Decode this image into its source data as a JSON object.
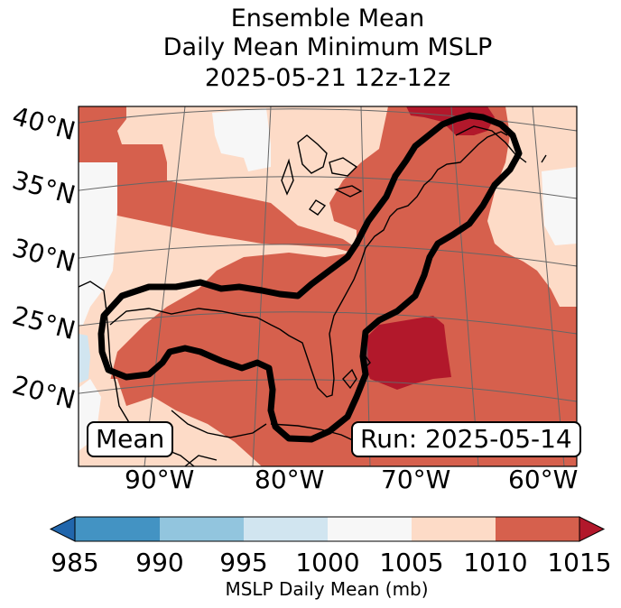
{
  "title": {
    "line1": "Ensemble Mean",
    "line2": "Daily Mean Minimum MSLP",
    "line3": "2025-05-21 12z-12z"
  },
  "map": {
    "region": "Eastern United States, Gulf of Mexico and western Atlantic",
    "lat_labels": [
      "40°N",
      "35°N",
      "30°N",
      "25°N",
      "20°N"
    ],
    "lon_labels": [
      "90°W",
      "80°W",
      "70°W",
      "60°W"
    ],
    "mean_badge": "Mean",
    "run_badge": "Run: 2025-05-14",
    "outline_color": "#000000"
  },
  "colorbar": {
    "ticks": [
      "985",
      "990",
      "995",
      "1000",
      "1005",
      "1010",
      "1015"
    ],
    "label": "MSLP Daily Mean (mb)",
    "colors": {
      "below_985": "#2166ac",
      "985_990": "#4393c3",
      "990_995": "#92c5de",
      "995_1000": "#d1e5f0",
      "1000_1005": "#f7f7f7",
      "1005_1010": "#fddbc7",
      "1010_1015": "#d6604d",
      "above_1015": "#b2182b"
    }
  }
}
